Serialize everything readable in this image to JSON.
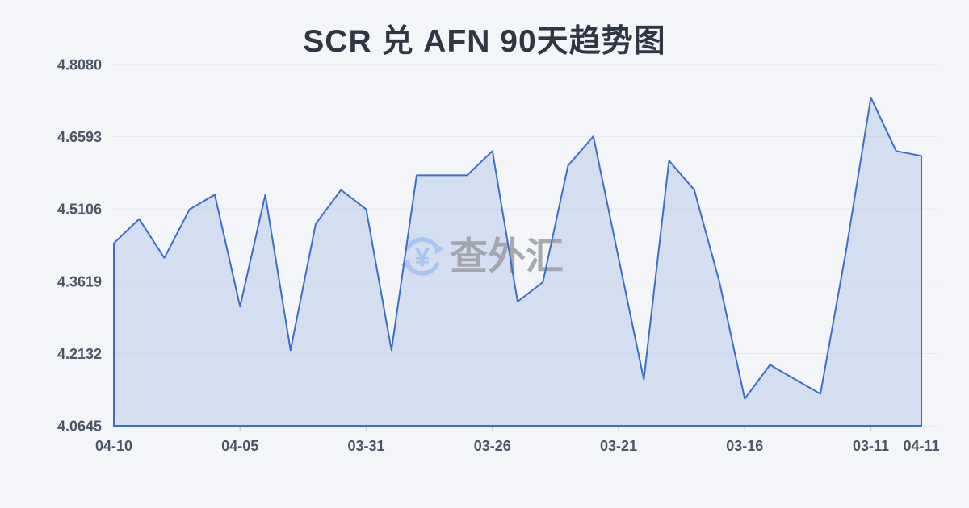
{
  "title": "SCR 兑 AFN 90天趋势图",
  "watermark": {
    "icon": "refresh-yen-icon",
    "text": "查外汇"
  },
  "colors": {
    "background": "#f4f5f9",
    "line": "#3c6ec8",
    "area_fill": "rgba(101,140,212,0.22)",
    "grid": "#e7e9ee",
    "title_text": "#2f3644",
    "axis_text": "#4c5565",
    "tick": "#c9ced8",
    "watermark_text": "#9a9da3",
    "watermark_icon": "#a9c5ef"
  },
  "chart_data": {
    "type": "area",
    "title": "SCR 兑 AFN 90天趋势图",
    "y_min": 4.0645,
    "y_max": 4.808,
    "y_tick_labels": [
      "4.8080",
      "4.6593",
      "4.5106",
      "4.3619",
      "4.2132",
      "4.0645"
    ],
    "x_tick_labels": [
      "04-10",
      "04-05",
      "03-31",
      "03-26",
      "03-21",
      "03-16",
      "03-11",
      "04-11"
    ],
    "x_tick_indices": [
      0,
      5,
      10,
      15,
      20,
      25,
      30,
      32
    ],
    "values": [
      4.44,
      4.49,
      4.41,
      4.51,
      4.54,
      4.31,
      4.54,
      4.22,
      4.48,
      4.55,
      4.51,
      4.22,
      4.58,
      4.58,
      4.58,
      4.63,
      4.32,
      4.36,
      4.6,
      4.66,
      4.41,
      4.16,
      4.61,
      4.55,
      4.36,
      4.12,
      4.19,
      4.16,
      4.13,
      4.42,
      4.74,
      4.63,
      4.62
    ],
    "grid": "horizontal",
    "legend": "none"
  }
}
